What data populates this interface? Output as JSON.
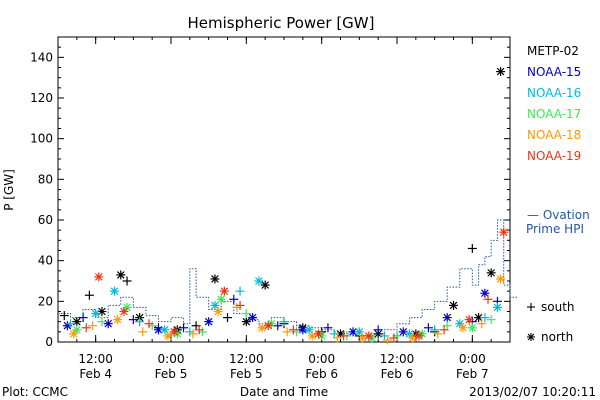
{
  "chart_data": {
    "type": "scatter",
    "title": "Hemispheric Power [GW]",
    "ylabel": "P [GW]",
    "xlabel": "Date and Time",
    "ylim": [
      0,
      150
    ],
    "yticks": [
      0,
      20,
      40,
      60,
      80,
      100,
      120,
      140
    ],
    "xlim": [
      "2013-02-04 06:00",
      "2013-02-07 06:00"
    ],
    "xticks": [
      {
        "t": "2013-02-04 12:00",
        "time": "12:00",
        "date": "Feb 4"
      },
      {
        "t": "2013-02-05 00:00",
        "time": "0:00",
        "date": "Feb 5"
      },
      {
        "t": "2013-02-05 12:00",
        "time": "12:00",
        "date": "Feb 5"
      },
      {
        "t": "2013-02-06 00:00",
        "time": "0:00",
        "date": "Feb 6"
      },
      {
        "t": "2013-02-06 12:00",
        "time": "12:00",
        "date": "Feb 6"
      },
      {
        "t": "2013-02-07 00:00",
        "time": "0:00",
        "date": "Feb 7"
      }
    ],
    "grid": false,
    "legend_placement": "right",
    "series": [
      {
        "name": "METP-02",
        "color": "#000000",
        "points": [
          [
            "2013-02-04 07:00",
            13,
            "+"
          ],
          [
            "2013-02-04 09:00",
            10,
            "*"
          ],
          [
            "2013-02-04 11:00",
            23,
            "+"
          ],
          [
            "2013-02-04 13:00",
            15,
            "*"
          ],
          [
            "2013-02-04 16:00",
            33,
            "*"
          ],
          [
            "2013-02-04 17:00",
            30,
            "+"
          ],
          [
            "2013-02-04 19:00",
            12,
            "*"
          ],
          [
            "2013-02-04 22:00",
            7,
            "+"
          ],
          [
            "2013-02-05 01:00",
            6,
            "*"
          ],
          [
            "2013-02-05 04:00",
            8,
            "+"
          ],
          [
            "2013-02-05 07:00",
            31,
            "*"
          ],
          [
            "2013-02-05 09:00",
            12,
            "+"
          ],
          [
            "2013-02-05 12:00",
            10,
            "*"
          ],
          [
            "2013-02-05 15:00",
            28,
            "*"
          ],
          [
            "2013-02-05 18:00",
            9,
            "+"
          ],
          [
            "2013-02-05 21:00",
            7,
            "*"
          ],
          [
            "2013-02-06 00:00",
            5,
            "+"
          ],
          [
            "2013-02-06 03:00",
            4,
            "*"
          ],
          [
            "2013-02-06 06:00",
            3,
            "+"
          ],
          [
            "2013-02-06 09:00",
            4,
            "*"
          ],
          [
            "2013-02-06 12:00",
            3,
            "+"
          ],
          [
            "2013-02-06 15:00",
            4,
            "*"
          ],
          [
            "2013-02-06 18:00",
            5,
            "+"
          ],
          [
            "2013-02-06 21:00",
            18,
            "*"
          ],
          [
            "2013-02-07 00:00",
            46,
            "+"
          ],
          [
            "2013-02-07 01:00",
            12,
            "*"
          ],
          [
            "2013-02-07 03:00",
            34,
            "*"
          ],
          [
            "2013-02-07 04:30",
            133,
            "*"
          ]
        ]
      },
      {
        "name": "NOAA-15",
        "color": "#0000cc",
        "points": [
          [
            "2013-02-04 07:30",
            8,
            "*"
          ],
          [
            "2013-02-04 10:00",
            12,
            "+"
          ],
          [
            "2013-02-04 14:00",
            9,
            "*"
          ],
          [
            "2013-02-04 18:00",
            11,
            "+"
          ],
          [
            "2013-02-04 22:00",
            6,
            "*"
          ],
          [
            "2013-02-05 02:00",
            7,
            "+"
          ],
          [
            "2013-02-05 06:00",
            10,
            "*"
          ],
          [
            "2013-02-05 10:00",
            21,
            "+"
          ],
          [
            "2013-02-05 13:00",
            12,
            "*"
          ],
          [
            "2013-02-05 17:00",
            8,
            "+"
          ],
          [
            "2013-02-05 21:00",
            6,
            "*"
          ],
          [
            "2013-02-06 01:00",
            7,
            "+"
          ],
          [
            "2013-02-06 05:00",
            5,
            "*"
          ],
          [
            "2013-02-06 09:00",
            6,
            "+"
          ],
          [
            "2013-02-06 13:00",
            5,
            "*"
          ],
          [
            "2013-02-06 17:00",
            7,
            "+"
          ],
          [
            "2013-02-06 20:00",
            12,
            "*"
          ],
          [
            "2013-02-07 00:00",
            10,
            "+"
          ],
          [
            "2013-02-07 02:00",
            24,
            "*"
          ],
          [
            "2013-02-07 04:00",
            20,
            "+"
          ]
        ]
      },
      {
        "name": "NOAA-16",
        "color": "#00bbdd",
        "points": [
          [
            "2013-02-04 08:00",
            9,
            "+"
          ],
          [
            "2013-02-04 12:00",
            14,
            "*"
          ],
          [
            "2013-02-04 15:00",
            25,
            "*"
          ],
          [
            "2013-02-04 19:00",
            10,
            "+"
          ],
          [
            "2013-02-04 23:00",
            6,
            "*"
          ],
          [
            "2013-02-05 03:00",
            5,
            "+"
          ],
          [
            "2013-02-05 07:00",
            18,
            "*"
          ],
          [
            "2013-02-05 11:00",
            25,
            "+"
          ],
          [
            "2013-02-05 14:00",
            30,
            "*"
          ],
          [
            "2013-02-05 18:00",
            10,
            "+"
          ],
          [
            "2013-02-05 22:00",
            6,
            "*"
          ],
          [
            "2013-02-06 02:00",
            4,
            "+"
          ],
          [
            "2013-02-06 06:00",
            5,
            "*"
          ],
          [
            "2013-02-06 10:00",
            3,
            "+"
          ],
          [
            "2013-02-06 14:00",
            4,
            "*"
          ],
          [
            "2013-02-06 18:00",
            6,
            "+"
          ],
          [
            "2013-02-06 22:00",
            9,
            "*"
          ],
          [
            "2013-02-07 02:00",
            12,
            "+"
          ],
          [
            "2013-02-07 04:00",
            17,
            "*"
          ]
        ]
      },
      {
        "name": "NOAA-17",
        "color": "#33ee55",
        "points": [
          [
            "2013-02-04 09:00",
            6,
            "*"
          ],
          [
            "2013-02-04 13:00",
            10,
            "+"
          ],
          [
            "2013-02-04 17:00",
            17,
            "*"
          ],
          [
            "2013-02-04 21:00",
            8,
            "+"
          ],
          [
            "2013-02-05 01:00",
            4,
            "*"
          ],
          [
            "2013-02-05 05:00",
            5,
            "+"
          ],
          [
            "2013-02-05 08:00",
            21,
            "*"
          ],
          [
            "2013-02-05 12:00",
            14,
            "+"
          ],
          [
            "2013-02-05 16:00",
            9,
            "*"
          ],
          [
            "2013-02-05 20:00",
            5,
            "+"
          ],
          [
            "2013-02-06 00:00",
            3,
            "*"
          ],
          [
            "2013-02-06 04:00",
            3,
            "+"
          ],
          [
            "2013-02-06 08:00",
            2,
            "*"
          ],
          [
            "2013-02-06 12:00",
            3,
            "+"
          ],
          [
            "2013-02-06 16:00",
            4,
            "*"
          ],
          [
            "2013-02-06 20:00",
            8,
            "+"
          ],
          [
            "2013-02-07 00:00",
            7,
            "*"
          ],
          [
            "2013-02-07 03:00",
            11,
            "+"
          ]
        ]
      },
      {
        "name": "NOAA-18",
        "color": "#ff9900",
        "points": [
          [
            "2013-02-04 08:30",
            4,
            "*"
          ],
          [
            "2013-02-04 11:30",
            8,
            "+"
          ],
          [
            "2013-02-04 15:30",
            11,
            "*"
          ],
          [
            "2013-02-04 19:30",
            5,
            "+"
          ],
          [
            "2013-02-04 23:30",
            3,
            "*"
          ],
          [
            "2013-02-05 03:30",
            4,
            "+"
          ],
          [
            "2013-02-05 07:30",
            15,
            "*"
          ],
          [
            "2013-02-05 10:30",
            17,
            "+"
          ],
          [
            "2013-02-05 14:30",
            7,
            "*"
          ],
          [
            "2013-02-05 18:30",
            5,
            "+"
          ],
          [
            "2013-02-05 22:30",
            3,
            "*"
          ],
          [
            "2013-02-06 02:30",
            2,
            "+"
          ],
          [
            "2013-02-06 06:30",
            2,
            "*"
          ],
          [
            "2013-02-06 10:30",
            1,
            "+"
          ],
          [
            "2013-02-06 14:30",
            2,
            "*"
          ],
          [
            "2013-02-06 18:30",
            4,
            "+"
          ],
          [
            "2013-02-06 22:30",
            7,
            "*"
          ],
          [
            "2013-02-07 01:30",
            9,
            "+"
          ],
          [
            "2013-02-07 04:30",
            31,
            "*"
          ]
        ]
      },
      {
        "name": "NOAA-19",
        "color": "#ee3311",
        "points": [
          [
            "2013-02-04 10:30",
            7,
            "+"
          ],
          [
            "2013-02-04 12:30",
            32,
            "*"
          ],
          [
            "2013-02-04 16:30",
            15,
            "*"
          ],
          [
            "2013-02-04 20:30",
            9,
            "+"
          ],
          [
            "2013-02-05 00:30",
            5,
            "*"
          ],
          [
            "2013-02-05 04:30",
            6,
            "+"
          ],
          [
            "2013-02-05 08:30",
            25,
            "*"
          ],
          [
            "2013-02-05 11:00",
            18,
            "+"
          ],
          [
            "2013-02-05 15:30",
            8,
            "*"
          ],
          [
            "2013-02-05 19:30",
            6,
            "+"
          ],
          [
            "2013-02-05 23:30",
            4,
            "*"
          ],
          [
            "2013-02-06 03:30",
            3,
            "+"
          ],
          [
            "2013-02-06 07:30",
            3,
            "*"
          ],
          [
            "2013-02-06 11:30",
            2,
            "+"
          ],
          [
            "2013-02-06 15:30",
            3,
            "*"
          ],
          [
            "2013-02-06 19:30",
            6,
            "+"
          ],
          [
            "2013-02-06 23:30",
            11,
            "*"
          ],
          [
            "2013-02-07 02:30",
            21,
            "+"
          ],
          [
            "2013-02-07 05:00",
            54,
            "*"
          ]
        ]
      }
    ],
    "ovation": {
      "name": "Ovation Prime HPI",
      "color": "#2255aa",
      "step_values": [
        [
          "2013-02-04 06:00",
          14
        ],
        [
          "2013-02-04 08:00",
          12
        ],
        [
          "2013-02-04 10:00",
          16
        ],
        [
          "2013-02-04 12:00",
          12
        ],
        [
          "2013-02-04 14:00",
          18
        ],
        [
          "2013-02-04 16:00",
          22
        ],
        [
          "2013-02-04 18:00",
          17
        ],
        [
          "2013-02-04 20:00",
          13
        ],
        [
          "2013-02-04 22:00",
          10
        ],
        [
          "2013-02-05 00:00",
          12
        ],
        [
          "2013-02-05 02:00",
          9
        ],
        [
          "2013-02-05 03:00",
          36
        ],
        [
          "2013-02-05 04:00",
          22
        ],
        [
          "2013-02-05 06:00",
          16
        ],
        [
          "2013-02-05 08:00",
          20
        ],
        [
          "2013-02-05 10:00",
          14
        ],
        [
          "2013-02-05 12:00",
          11
        ],
        [
          "2013-02-05 14:00",
          9
        ],
        [
          "2013-02-05 16:00",
          12
        ],
        [
          "2013-02-05 18:00",
          10
        ],
        [
          "2013-02-05 20:00",
          8
        ],
        [
          "2013-02-05 22:00",
          7
        ],
        [
          "2013-02-06 00:00",
          6
        ],
        [
          "2013-02-06 02:00",
          5
        ],
        [
          "2013-02-06 04:00",
          4
        ],
        [
          "2013-02-06 06:00",
          3
        ],
        [
          "2013-02-06 08:00",
          4
        ],
        [
          "2013-02-06 10:00",
          6
        ],
        [
          "2013-02-06 12:00",
          9
        ],
        [
          "2013-02-06 14:00",
          12
        ],
        [
          "2013-02-06 16:00",
          16
        ],
        [
          "2013-02-06 18:00",
          20
        ],
        [
          "2013-02-06 20:00",
          27
        ],
        [
          "2013-02-06 22:00",
          36
        ],
        [
          "2013-02-07 00:00",
          28
        ],
        [
          "2013-02-07 01:00",
          38
        ],
        [
          "2013-02-07 02:00",
          42
        ],
        [
          "2013-02-07 03:00",
          50
        ],
        [
          "2013-02-07 04:00",
          60
        ],
        [
          "2013-02-07 05:00",
          28
        ],
        [
          "2013-02-07 06:00",
          22
        ]
      ]
    },
    "marker_legend": [
      {
        "symbol": "+",
        "label": "south"
      },
      {
        "symbol": "*",
        "label": "north"
      }
    ]
  },
  "footer": {
    "left": "Plot: CCMC",
    "center": "Date and Time",
    "right": "2013/02/07 10:20:11"
  },
  "legend_ovation": {
    "line1": "— Ovation",
    "line2": "Prime HPI"
  }
}
